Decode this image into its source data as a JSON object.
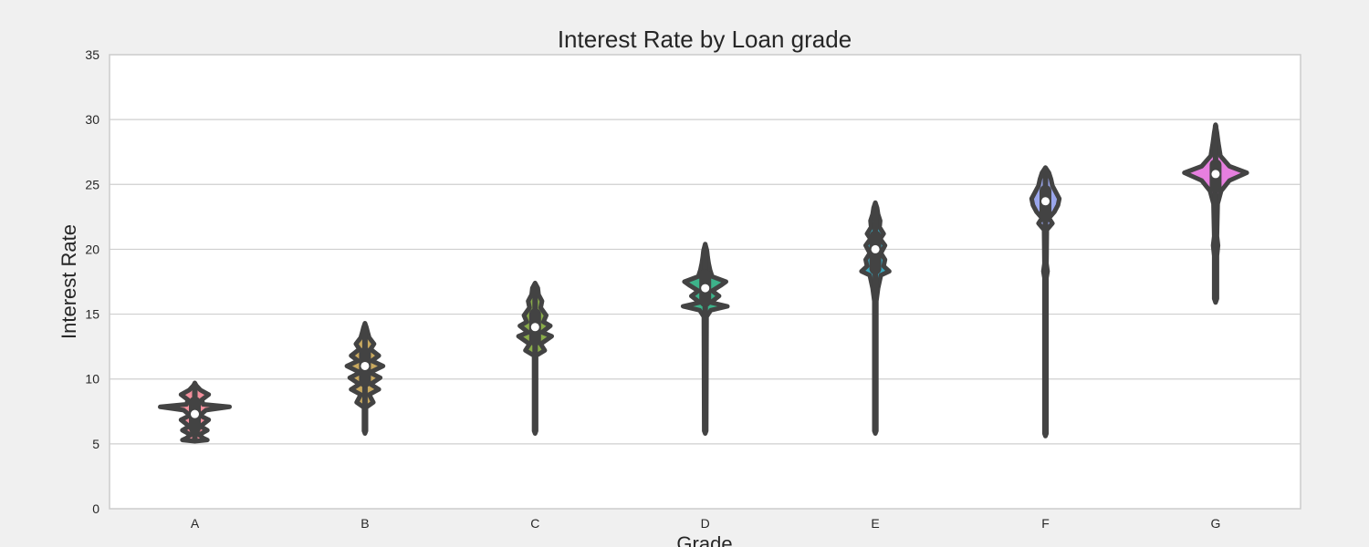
{
  "chart_data": {
    "type": "violin",
    "title": "Interest Rate by Loan grade",
    "xlabel": "Grade",
    "ylabel": "Interest Rate",
    "ylim": [
      0,
      35
    ],
    "yticks": [
      0,
      5,
      10,
      15,
      20,
      25,
      30,
      35
    ],
    "grid": "y",
    "categories": [
      "A",
      "B",
      "C",
      "D",
      "E",
      "F",
      "G"
    ],
    "colors": [
      "#f28e9b",
      "#c9a95f",
      "#8aac4a",
      "#3db28a",
      "#3ba7bd",
      "#9aa6ec",
      "#e77fdf"
    ],
    "series": [
      {
        "grade": "A",
        "median": 7.3,
        "q1": 6.2,
        "q3": 8.2,
        "min": 5.3,
        "max": 9.6,
        "profile": [
          [
            5.2,
            0
          ],
          [
            5.3,
            0.18
          ],
          [
            5.45,
            0.12
          ],
          [
            5.7,
            0.06
          ],
          [
            6.05,
            0.18
          ],
          [
            6.35,
            0.08
          ],
          [
            6.85,
            0.2
          ],
          [
            7.2,
            0.07
          ],
          [
            7.6,
            0.16
          ],
          [
            7.85,
            0.5
          ],
          [
            8.05,
            0.12
          ],
          [
            8.4,
            0.1
          ],
          [
            8.8,
            0.2
          ],
          [
            9.15,
            0.08
          ],
          [
            9.5,
            0.02
          ],
          [
            9.7,
            0
          ]
        ]
      },
      {
        "grade": "B",
        "median": 11.0,
        "q1": 9.8,
        "q3": 12.0,
        "min": 6.0,
        "max": 14.1,
        "profile": [
          [
            5.8,
            0
          ],
          [
            6.0,
            0.015
          ],
          [
            7.8,
            0.015
          ],
          [
            8.2,
            0.12
          ],
          [
            8.8,
            0.06
          ],
          [
            9.2,
            0.2
          ],
          [
            9.6,
            0.08
          ],
          [
            10.1,
            0.22
          ],
          [
            10.5,
            0.07
          ],
          [
            11.0,
            0.26
          ],
          [
            11.4,
            0.1
          ],
          [
            11.8,
            0.2
          ],
          [
            12.3,
            0.08
          ],
          [
            12.7,
            0.13
          ],
          [
            13.2,
            0.06
          ],
          [
            13.6,
            0.04
          ],
          [
            14.0,
            0.02
          ],
          [
            14.3,
            0
          ]
        ]
      },
      {
        "grade": "C",
        "median": 14.0,
        "q1": 13.0,
        "q3": 15.0,
        "min": 6.0,
        "max": 17.2,
        "profile": [
          [
            5.8,
            0
          ],
          [
            6.0,
            0.015
          ],
          [
            11.8,
            0.015
          ],
          [
            12.2,
            0.14
          ],
          [
            12.7,
            0.08
          ],
          [
            13.3,
            0.24
          ],
          [
            13.6,
            0.1
          ],
          [
            14.1,
            0.22
          ],
          [
            14.4,
            0.12
          ],
          [
            14.9,
            0.16
          ],
          [
            15.5,
            0.08
          ],
          [
            16.0,
            0.1
          ],
          [
            16.5,
            0.05
          ],
          [
            17.0,
            0.04
          ],
          [
            17.4,
            0
          ]
        ]
      },
      {
        "grade": "D",
        "median": 17.0,
        "q1": 16.0,
        "q3": 18.0,
        "min": 6.0,
        "max": 20.2,
        "profile": [
          [
            5.8,
            0
          ],
          [
            6.0,
            0.015
          ],
          [
            14.8,
            0.02
          ],
          [
            15.3,
            0.08
          ],
          [
            15.6,
            0.32
          ],
          [
            15.9,
            0.08
          ],
          [
            16.4,
            0.2
          ],
          [
            16.8,
            0.1
          ],
          [
            17.2,
            0.22
          ],
          [
            17.5,
            0.3
          ],
          [
            17.9,
            0.1
          ],
          [
            18.4,
            0.07
          ],
          [
            18.9,
            0.05
          ],
          [
            19.4,
            0.035
          ],
          [
            19.9,
            0.025
          ],
          [
            20.4,
            0
          ]
        ]
      },
      {
        "grade": "E",
        "median": 20.0,
        "q1": 18.5,
        "q3": 21.0,
        "min": 6.0,
        "max": 23.4,
        "profile": [
          [
            5.8,
            0
          ],
          [
            6.0,
            0.015
          ],
          [
            16.0,
            0.015
          ],
          [
            17.0,
            0.04
          ],
          [
            18.0,
            0.08
          ],
          [
            18.3,
            0.2
          ],
          [
            18.7,
            0.12
          ],
          [
            19.2,
            0.14
          ],
          [
            19.7,
            0.08
          ],
          [
            20.3,
            0.14
          ],
          [
            20.8,
            0.07
          ],
          [
            21.2,
            0.12
          ],
          [
            21.7,
            0.06
          ],
          [
            22.2,
            0.07
          ],
          [
            22.7,
            0.04
          ],
          [
            23.2,
            0.025
          ],
          [
            23.6,
            0
          ]
        ]
      },
      {
        "grade": "F",
        "median": 23.7,
        "q1": 22.5,
        "q3": 24.5,
        "min": 5.8,
        "max": 26.2,
        "profile": [
          [
            5.6,
            0
          ],
          [
            5.8,
            0.015
          ],
          [
            17.8,
            0.015
          ],
          [
            18.3,
            0.03
          ],
          [
            18.9,
            0.015
          ],
          [
            21.5,
            0.02
          ],
          [
            22.0,
            0.1
          ],
          [
            22.4,
            0.05
          ],
          [
            22.9,
            0.13
          ],
          [
            23.4,
            0.18
          ],
          [
            23.9,
            0.2
          ],
          [
            24.4,
            0.15
          ],
          [
            24.9,
            0.1
          ],
          [
            25.4,
            0.08
          ],
          [
            25.9,
            0.05
          ],
          [
            26.3,
            0
          ]
        ]
      },
      {
        "grade": "G",
        "median": 25.8,
        "q1": 24.8,
        "q3": 26.5,
        "min": 16.2,
        "max": 29.5,
        "profile": [
          [
            15.9,
            0
          ],
          [
            16.2,
            0.02
          ],
          [
            19.5,
            0.02
          ],
          [
            20.3,
            0.035
          ],
          [
            21.0,
            0.02
          ],
          [
            23.5,
            0.03
          ],
          [
            24.5,
            0.08
          ],
          [
            25.3,
            0.2
          ],
          [
            25.9,
            0.45
          ],
          [
            26.4,
            0.2
          ],
          [
            27.2,
            0.07
          ],
          [
            28.2,
            0.04
          ],
          [
            29.0,
            0.02
          ],
          [
            29.6,
            0
          ]
        ]
      }
    ]
  }
}
